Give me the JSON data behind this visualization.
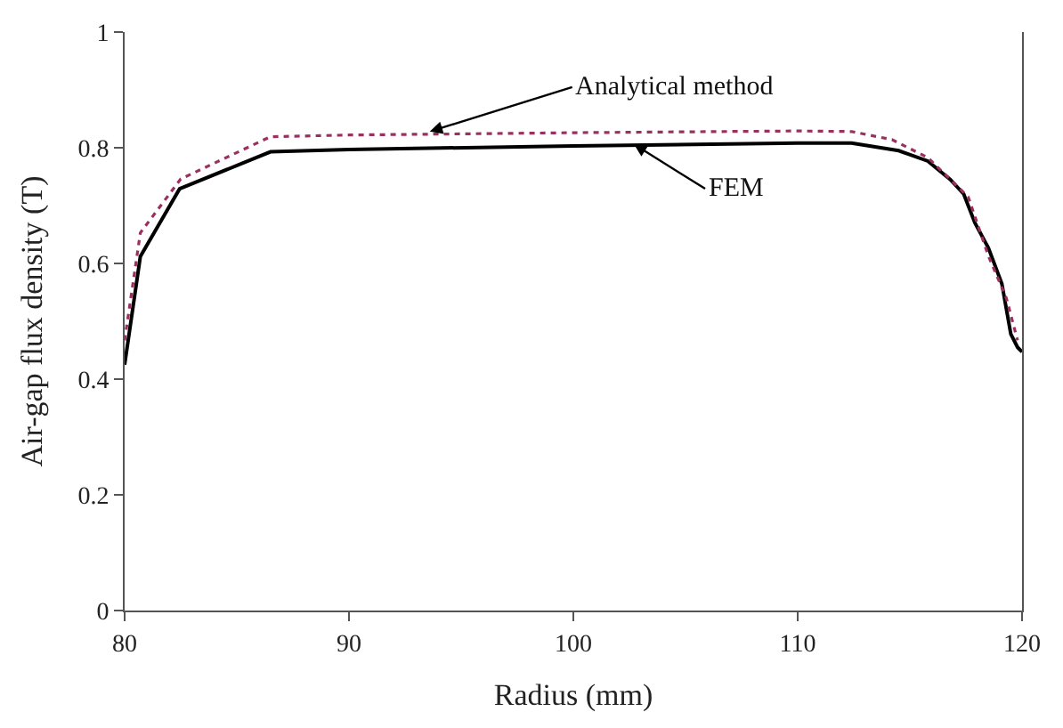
{
  "chart_data": {
    "type": "line",
    "xlabel": "Radius (mm)",
    "ylabel": "Air-gap flux density (T)",
    "xlim": [
      80,
      120
    ],
    "ylim": [
      0,
      1
    ],
    "xticks": [
      80,
      90,
      100,
      110,
      120
    ],
    "yticks": [
      0,
      0.2,
      0.4,
      0.6,
      0.8,
      1
    ],
    "legend": false,
    "marker": "none",
    "series": [
      {
        "color": "#000000",
        "line_style": "solid",
        "x": [
          80,
          80.7,
          82.45,
          86.5,
          90,
          100,
          110,
          112.4,
          114.5,
          115.8,
          116.8,
          117.4,
          117.9,
          118.5,
          119.1,
          119.5,
          119.8,
          120
        ],
        "values": [
          0.425,
          0.612,
          0.729,
          0.793,
          0.797,
          0.803,
          0.808,
          0.808,
          0.795,
          0.777,
          0.745,
          0.72,
          0.67,
          0.627,
          0.565,
          0.478,
          0.455,
          0.447
        ]
      },
      {
        "color": "#9b3060",
        "line_style": "dotted",
        "x": [
          80,
          80.7,
          82.5,
          86.5,
          90,
          100,
          110,
          112.4,
          114.2,
          115.8,
          117.6,
          118.5,
          119.3,
          119.8
        ],
        "values": [
          0.467,
          0.653,
          0.746,
          0.819,
          0.822,
          0.826,
          0.829,
          0.828,
          0.814,
          0.783,
          0.715,
          0.613,
          0.54,
          0.467
        ]
      }
    ],
    "annotations": [
      {
        "text": "Analytical method",
        "x": 93.6,
        "y": 0.828
      },
      {
        "text": "FEM",
        "x": 102.7,
        "y": 0.806
      }
    ]
  }
}
